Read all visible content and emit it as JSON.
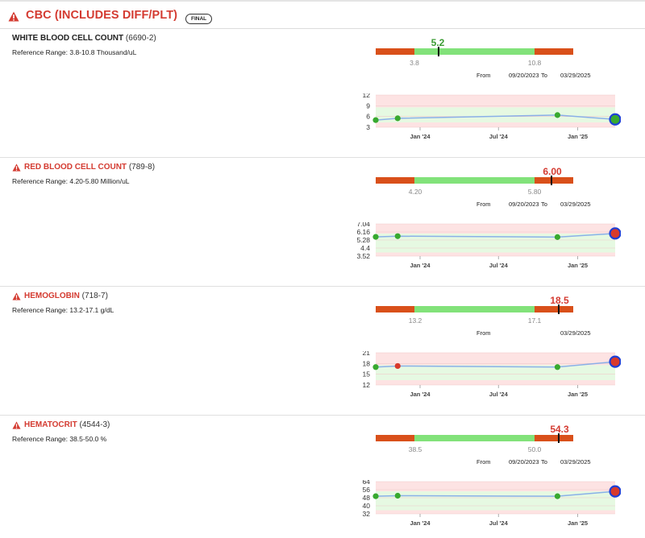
{
  "header": {
    "title": "CBC (INCLUDES DIFF/PLT)",
    "badge": "FINAL"
  },
  "tests": [
    {
      "name": "WHITE BLOOD CELL COUNT",
      "code": "(6690-2)",
      "flagged": false,
      "reference": "Reference Range: 3.8-10.8 Thousand/uL",
      "value": "5.2",
      "value_status": "normal",
      "range_low_label": "3.8",
      "range_high_label": "10.8",
      "from_label": "From",
      "from_date": "09/20/2023",
      "to_label": "To",
      "to_date": "03/29/2025",
      "trend": {
        "y_ticks": [
          "12",
          "9",
          "6",
          "3"
        ],
        "x_ticks": [
          "Jan '24",
          "Jul '24",
          "Jan '25"
        ],
        "history": [
          {
            "date": "2023-09-20",
            "value": 5.0,
            "status": "normal"
          },
          {
            "date": "2023-11-10",
            "value": 5.5,
            "status": "normal"
          },
          {
            "date": "2024-11-15",
            "value": 6.4,
            "status": "normal"
          },
          {
            "date": "2025-03-29",
            "value": 5.2,
            "status": "normal",
            "latest": true
          }
        ]
      }
    },
    {
      "name": "RED BLOOD CELL COUNT",
      "code": "(789-8)",
      "flagged": true,
      "reference": "Reference Range: 4.20-5.80 Million/uL",
      "value": "6.00",
      "value_status": "high",
      "range_low_label": "4.20",
      "range_high_label": "5.80",
      "from_label": "From",
      "from_date": "09/20/2023",
      "to_label": "To",
      "to_date": "03/29/2025",
      "trend": {
        "y_ticks": [
          "7.04",
          "6.16",
          "5.28",
          "4.4",
          "3.52"
        ],
        "x_ticks": [
          "Jan '24",
          "Jul '24",
          "Jan '25"
        ],
        "history": [
          {
            "date": "2023-09-20",
            "value": 5.62,
            "status": "normal"
          },
          {
            "date": "2023-11-10",
            "value": 5.7,
            "status": "normal"
          },
          {
            "date": "2024-11-15",
            "value": 5.6,
            "status": "normal"
          },
          {
            "date": "2025-03-29",
            "value": 6.0,
            "status": "high",
            "latest": true
          }
        ]
      }
    },
    {
      "name": "HEMOGLOBIN",
      "code": "(718-7)",
      "flagged": true,
      "reference": "Reference Range: 13.2-17.1 g/dL",
      "value": "18.5",
      "value_status": "high",
      "range_low_label": "13.2",
      "range_high_label": "17.1",
      "from_label": "From",
      "from_date": "",
      "to_label": "",
      "to_date": "03/29/2025",
      "trend": {
        "y_ticks": [
          "21",
          "18",
          "15",
          "12"
        ],
        "x_ticks": [
          "Jan '24",
          "Jul '24",
          "Jan '25"
        ],
        "history": [
          {
            "date": "2023-09-20",
            "value": 17.0,
            "status": "normal"
          },
          {
            "date": "2023-11-10",
            "value": 17.3,
            "status": "high"
          },
          {
            "date": "2024-11-15",
            "value": 17.0,
            "status": "normal"
          },
          {
            "date": "2025-03-29",
            "value": 18.5,
            "status": "high",
            "latest": true
          }
        ]
      }
    },
    {
      "name": "HEMATOCRIT",
      "code": "(4544-3)",
      "flagged": true,
      "reference": "Reference Range: 38.5-50.0 %",
      "value": "54.3",
      "value_status": "high",
      "range_low_label": "38.5",
      "range_high_label": "50.0",
      "from_label": "From",
      "from_date": "09/20/2023",
      "to_label": "To",
      "to_date": "03/29/2025",
      "trend": {
        "y_ticks": [
          "64",
          "56",
          "48",
          "40",
          "32"
        ],
        "x_ticks": [
          "Jan '24",
          "Jul '24",
          "Jan '25"
        ],
        "history": [
          {
            "date": "2023-09-20",
            "value": 49.5,
            "status": "normal"
          },
          {
            "date": "2023-11-10",
            "value": 50.0,
            "status": "normal"
          },
          {
            "date": "2024-11-15",
            "value": 49.5,
            "status": "normal"
          },
          {
            "date": "2025-03-29",
            "value": 54.3,
            "status": "high",
            "latest": true
          }
        ]
      }
    }
  ],
  "colors": {
    "title_red": "#d43b31",
    "out_of_range": "#d9501a",
    "in_range": "#82e27a",
    "value_green": "#3b9c33",
    "dot_green": "#38a92f",
    "dot_red": "#d83a2c",
    "latest_ring": "#1d3fd6",
    "line": "#8ab0e8",
    "band_pink": "#fde3e3",
    "band_green": "#e6f9e2"
  }
}
